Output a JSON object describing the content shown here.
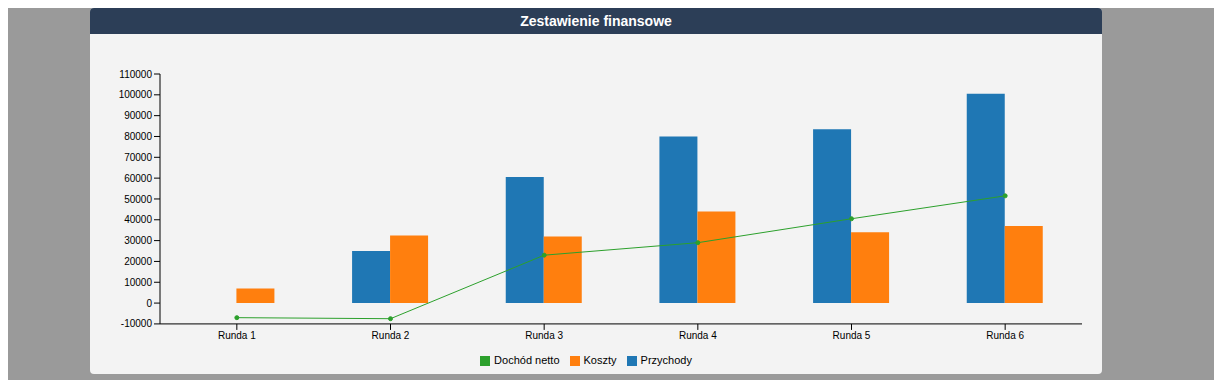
{
  "chart_data": {
    "type": "bar",
    "title": "Zestawienie finansowe",
    "categories": [
      "Runda 1",
      "Runda 2",
      "Runda 3",
      "Runda 4",
      "Runda 5",
      "Runda 6"
    ],
    "series": [
      {
        "name": "Przychody",
        "color": "#1f77b4",
        "type": "bar",
        "values": [
          0,
          25000,
          60500,
          80000,
          83500,
          100500
        ]
      },
      {
        "name": "Koszty",
        "color": "#ff7f0e",
        "type": "bar",
        "values": [
          7000,
          32500,
          32000,
          44000,
          34000,
          37000
        ]
      },
      {
        "name": "Dochód netto",
        "color": "#2ca02c",
        "type": "line",
        "marker": "circle",
        "values": [
          -7000,
          -7500,
          23000,
          29000,
          40500,
          51500
        ]
      }
    ],
    "ylim": [
      -10000,
      110000
    ],
    "yticks": [
      -10000,
      0,
      10000,
      20000,
      30000,
      40000,
      50000,
      60000,
      70000,
      80000,
      90000,
      100000,
      110000
    ],
    "grid": false,
    "legend": "bottom"
  }
}
